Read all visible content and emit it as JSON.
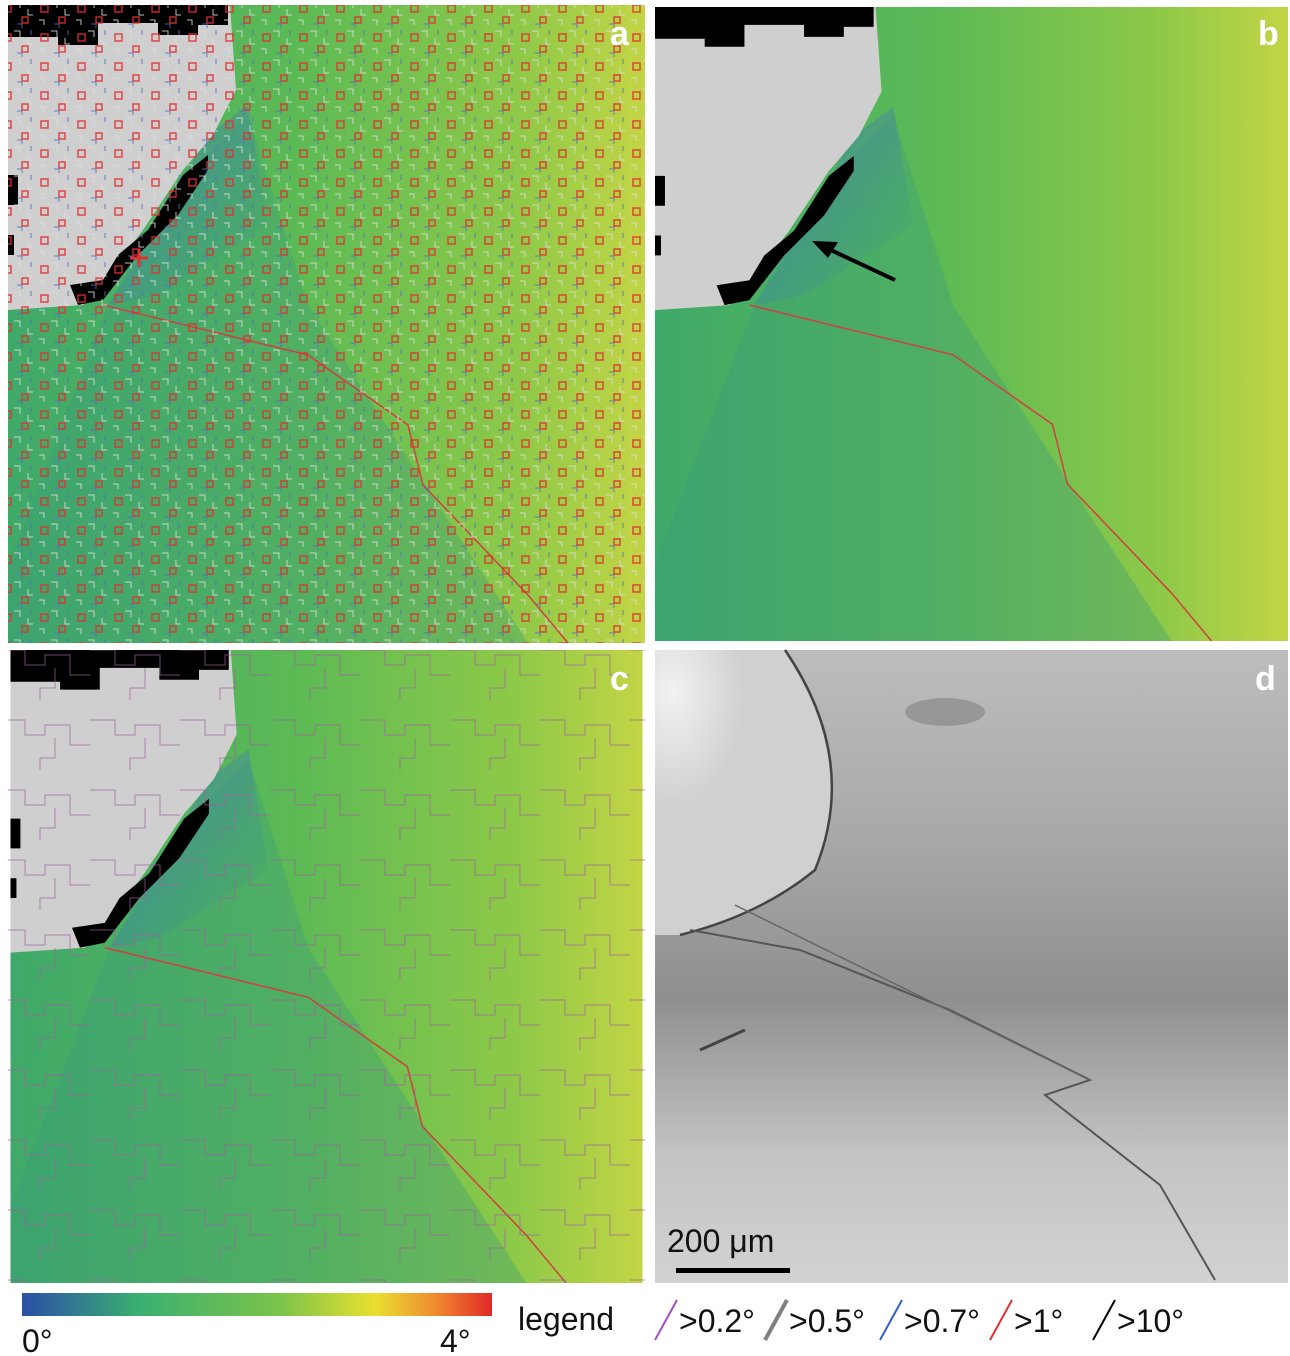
{
  "panels": [
    {
      "label": "a"
    },
    {
      "label": "b"
    },
    {
      "label": "c"
    },
    {
      "label": "d"
    }
  ],
  "scale_bar": "200 μm",
  "colorbar": {
    "min_label": "0°",
    "max_label": "4°"
  },
  "legend": {
    "title": "legend",
    "items": [
      {
        "label": ">0.2°",
        "color": "#a050c0"
      },
      {
        "label": ">0.5°",
        "color": "#808080"
      },
      {
        "label": ">0.7°",
        "color": "#3060c0"
      },
      {
        "label": ">1°",
        "color": "#e03030"
      },
      {
        "label": ">10°",
        "color": "#000000"
      }
    ]
  }
}
